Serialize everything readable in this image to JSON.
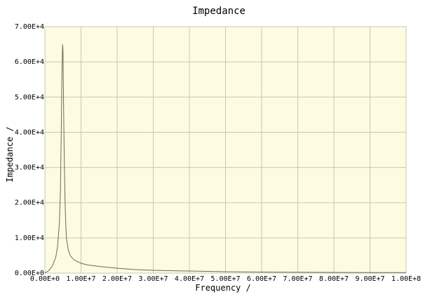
{
  "chart_data": {
    "type": "line",
    "title": "Impedance",
    "xlabel": "Frequency /",
    "ylabel": "Impedance /",
    "xlim": [
      0,
      100000000
    ],
    "ylim": [
      0,
      70000
    ],
    "x_ticks": [
      0,
      10000000,
      20000000,
      30000000,
      40000000,
      50000000,
      60000000,
      70000000,
      80000000,
      90000000,
      100000000
    ],
    "x_tick_labels": [
      "0.00E+0",
      "1.00E+7",
      "2.00E+7",
      "3.00E+7",
      "4.00E+7",
      "5.00E+7",
      "6.00E+7",
      "7.00E+7",
      "8.00E+7",
      "9.00E+7",
      "1.00E+8"
    ],
    "y_ticks": [
      0,
      10000,
      20000,
      30000,
      40000,
      50000,
      60000,
      70000
    ],
    "y_tick_labels": [
      "0.00E+0",
      "1.00E+4",
      "2.00E+4",
      "3.00E+4",
      "4.00E+4",
      "5.00E+4",
      "6.00E+4",
      "7.00E+4"
    ],
    "grid": true,
    "colors": {
      "background": "#fdfbe0",
      "grid": "#c8c8b4",
      "line": "#6b6b58"
    },
    "series": [
      {
        "x": [
          0,
          1000000,
          2000000,
          3000000,
          3500000,
          4000000,
          4300000,
          4500000,
          4700000,
          4900000,
          5000000,
          5200000,
          5400000,
          5600000,
          5800000,
          6000000,
          6500000,
          7000000,
          8000000,
          10000000,
          12000000,
          15000000,
          20000000,
          25000000,
          30000000,
          40000000,
          50000000,
          60000000,
          70000000,
          80000000,
          90000000,
          100000000
        ],
        "y": [
          0,
          700,
          1900,
          4500,
          7500,
          14000,
          23000,
          38000,
          55000,
          65000,
          63000,
          45000,
          30000,
          20000,
          13000,
          9500,
          6500,
          5000,
          3800,
          2800,
          2300,
          1900,
          1400,
          1000,
          800,
          600,
          400,
          300,
          250,
          200,
          150,
          150
        ]
      }
    ]
  }
}
